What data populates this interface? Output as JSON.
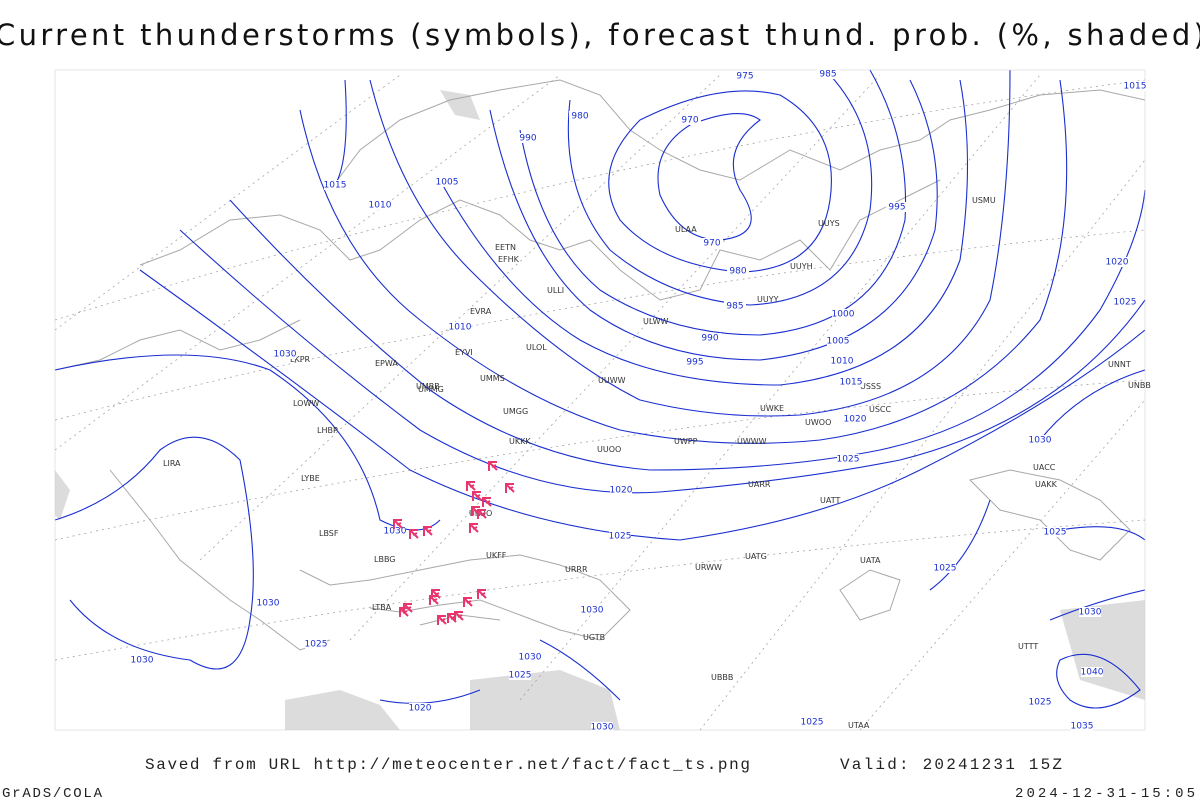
{
  "title": "Current thunderstorms (symbols), forecast thund. prob. (%, shaded)",
  "footer": {
    "saved": "Saved from URL http://meteocenter.net/fact/fact_ts.png",
    "valid": "Valid: 20241231 15Z",
    "credit": "GrADS/COLA",
    "timestamp": "2024-12-31-15:05"
  },
  "isobar_labels": [
    "975",
    "985",
    "1015",
    "990",
    "980",
    "970",
    "1015",
    "1005",
    "1010",
    "970",
    "980",
    "985",
    "990",
    "995",
    "1000",
    "1005",
    "1010",
    "1015",
    "1020",
    "1025",
    "1010",
    "1030",
    "1020",
    "1025",
    "1030",
    "1030",
    "1025",
    "1020",
    "995",
    "1025",
    "1025",
    "1030",
    "1025",
    "1030",
    "1030",
    "1030",
    "1025",
    "1020",
    "1030",
    "1025",
    "1030",
    "1040",
    "1025",
    "1035"
  ],
  "station_labels": [
    "ULOL",
    "ULLI",
    "UUYY",
    "UUYH",
    "ULWW",
    "UUWW",
    "UUOO",
    "UKKK",
    "UKOO",
    "UKFF",
    "URRR",
    "URWW",
    "UATT",
    "UARR",
    "UWWW",
    "UWPP",
    "UMMS",
    "UMGG",
    "UMMG",
    "UMBB",
    "EVRA",
    "EYVI",
    "EPWA",
    "EETN",
    "EFHK",
    "LKPR",
    "LOWW",
    "LHBP",
    "LIRA",
    "LYBE",
    "LBSF",
    "LBBG",
    "LTBA",
    "UGTB",
    "UBBB",
    "UTAA",
    "UTTT",
    "UACC",
    "UAKK",
    "UNNT",
    "UNBB",
    "USSS",
    "USCC",
    "USMU",
    "UUYS",
    "ULAA",
    "UWKE",
    "UWOO",
    "UATG",
    "UATA"
  ]
}
